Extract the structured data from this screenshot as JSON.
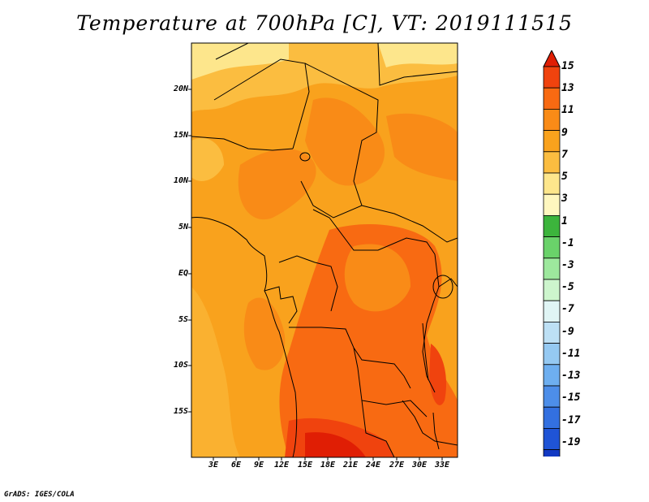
{
  "title": "Temperature at 700hPa [C], VT: 2019111515",
  "footer": "GrADS: IGES/COLA",
  "map": {
    "lat_labels": [
      "20N",
      "15N",
      "10N",
      "5N",
      "EQ",
      "5S",
      "10S",
      "15S"
    ],
    "lon_labels": [
      "3E",
      "6E",
      "9E",
      "12E",
      "15E",
      "18E",
      "21E",
      "24E",
      "27E",
      "30E",
      "33E"
    ],
    "dominant_fill": "#f9a21d"
  },
  "colorbar": {
    "labels": [
      "15",
      "13",
      "11",
      "9",
      "7",
      "5",
      "3",
      "1",
      "-1",
      "-3",
      "-5",
      "-7",
      "-9",
      "-11",
      "-13",
      "-15",
      "-17",
      "-19"
    ],
    "colors": [
      "#e01e04",
      "#f0430e",
      "#f86a12",
      "#f98b17",
      "#f9a21d",
      "#fbbd40",
      "#fde68c",
      "#fff7bf",
      "#3cb43c",
      "#6ad26a",
      "#9de89d",
      "#cdf5cd",
      "#e0f5f5",
      "#bde0f5",
      "#95c9f2",
      "#6eaff0",
      "#4d8ee9",
      "#3370e0",
      "#1f54d6",
      "#1239c3",
      "#0a1e9e",
      "#05127a",
      "#d8d6f8"
    ]
  }
}
